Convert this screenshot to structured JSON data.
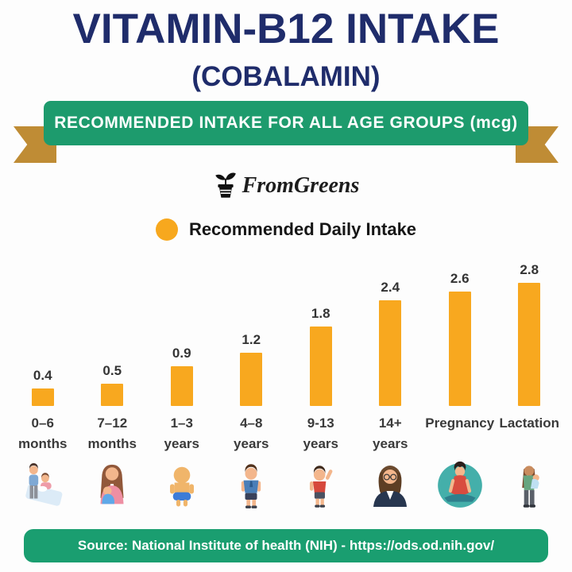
{
  "page": {
    "title": "VITAMIN-B12 INTAKE",
    "subtitle": "(COBALAMIN)",
    "banner_text": "RECOMMENDED INTAKE FOR ALL AGE GROUPS (mcg)",
    "brand_name": "FromGreens",
    "source_text": "Source: National Institute of health (NIH) - https://ods.od.nih.gov/"
  },
  "legend": {
    "label": "Recommended Daily Intake",
    "swatch_color": "#F7A81E"
  },
  "chart_data": {
    "type": "bar",
    "title": "Recommended Intake for All Age Groups (mcg)",
    "unit": "mcg",
    "series_name": "Recommended Daily Intake",
    "categories": [
      "0–6 months",
      "7–12 months",
      "1–3 years",
      "4–8 years",
      "9-13 years",
      "14+ years",
      "Pregnancy",
      "Lactation"
    ],
    "category_lines": [
      [
        "0–6",
        "months"
      ],
      [
        "7–12",
        "months"
      ],
      [
        "1–3",
        "years"
      ],
      [
        "4–8",
        "years"
      ],
      [
        "9-13",
        "years"
      ],
      [
        "14+",
        "years"
      ],
      [
        "Pregnancy"
      ],
      [
        "Lactation"
      ]
    ],
    "values": [
      0.4,
      0.5,
      0.9,
      1.2,
      1.8,
      2.4,
      2.6,
      2.8
    ],
    "value_labels": [
      "0.4",
      "0.5",
      "0.9",
      "1.2",
      "1.8",
      "2.4",
      "2.6",
      "2.8"
    ],
    "ylim": [
      0,
      3
    ],
    "grid": false,
    "legend_position": "top",
    "bar_color": "#F8A81F",
    "icons": [
      "family-with-newborn-icon",
      "mother-holding-infant-icon",
      "toddler-in-diaper-icon",
      "young-boy-icon",
      "boy-waving-icon",
      "adult-woman-icon",
      "pregnant-woman-meditating-icon",
      "woman-holding-baby-icon"
    ]
  },
  "colors": {
    "title_navy": "#1F2C6B",
    "banner_green": "#1D9B6D",
    "ribbon_gold": "#BF8C35",
    "bar_orange": "#F8A81F",
    "footer_green": "#1A9E70"
  }
}
